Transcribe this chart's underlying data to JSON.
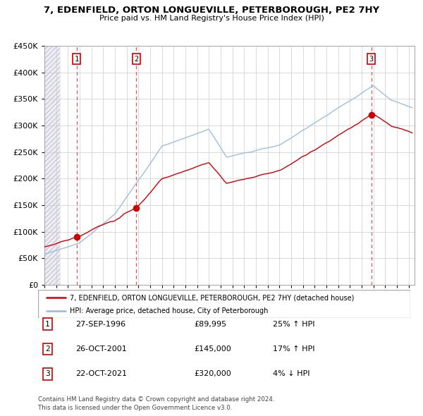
{
  "title": "7, EDENFIELD, ORTON LONGUEVILLE, PETERBOROUGH, PE2 7HY",
  "subtitle": "Price paid vs. HM Land Registry's House Price Index (HPI)",
  "ylim": [
    0,
    450000
  ],
  "yticks": [
    0,
    50000,
    100000,
    150000,
    200000,
    250000,
    300000,
    350000,
    400000,
    450000
  ],
  "ytick_labels": [
    "£0",
    "£50K",
    "£100K",
    "£150K",
    "£200K",
    "£250K",
    "£300K",
    "£350K",
    "£400K",
    "£450K"
  ],
  "xlim_start": 1994.0,
  "xlim_end": 2025.5,
  "sale1_date": 1996.742,
  "sale1_price": 89995,
  "sale2_date": 2001.819,
  "sale2_price": 145000,
  "sale3_date": 2021.811,
  "sale3_price": 320000,
  "legend_line1": "7, EDENFIELD, ORTON LONGUEVILLE, PETERBOROUGH, PE2 7HY (detached house)",
  "legend_line2": "HPI: Average price, detached house, City of Peterborough",
  "footer1": "Contains HM Land Registry data © Crown copyright and database right 2024.",
  "footer2": "This data is licensed under the Open Government Licence v3.0.",
  "price_color": "#cc0000",
  "hpi_color": "#99bbdd",
  "dashed_color": "#dd4444",
  "grid_color": "#cccccc",
  "table_box_color": "#cc0000",
  "rows": [
    [
      "1",
      "27-SEP-1996",
      "£89,995",
      "25% ↑ HPI"
    ],
    [
      "2",
      "26-OCT-2001",
      "£145,000",
      "17% ↑ HPI"
    ],
    [
      "3",
      "22-OCT-2021",
      "£320,000",
      "4% ↓ HPI"
    ]
  ]
}
